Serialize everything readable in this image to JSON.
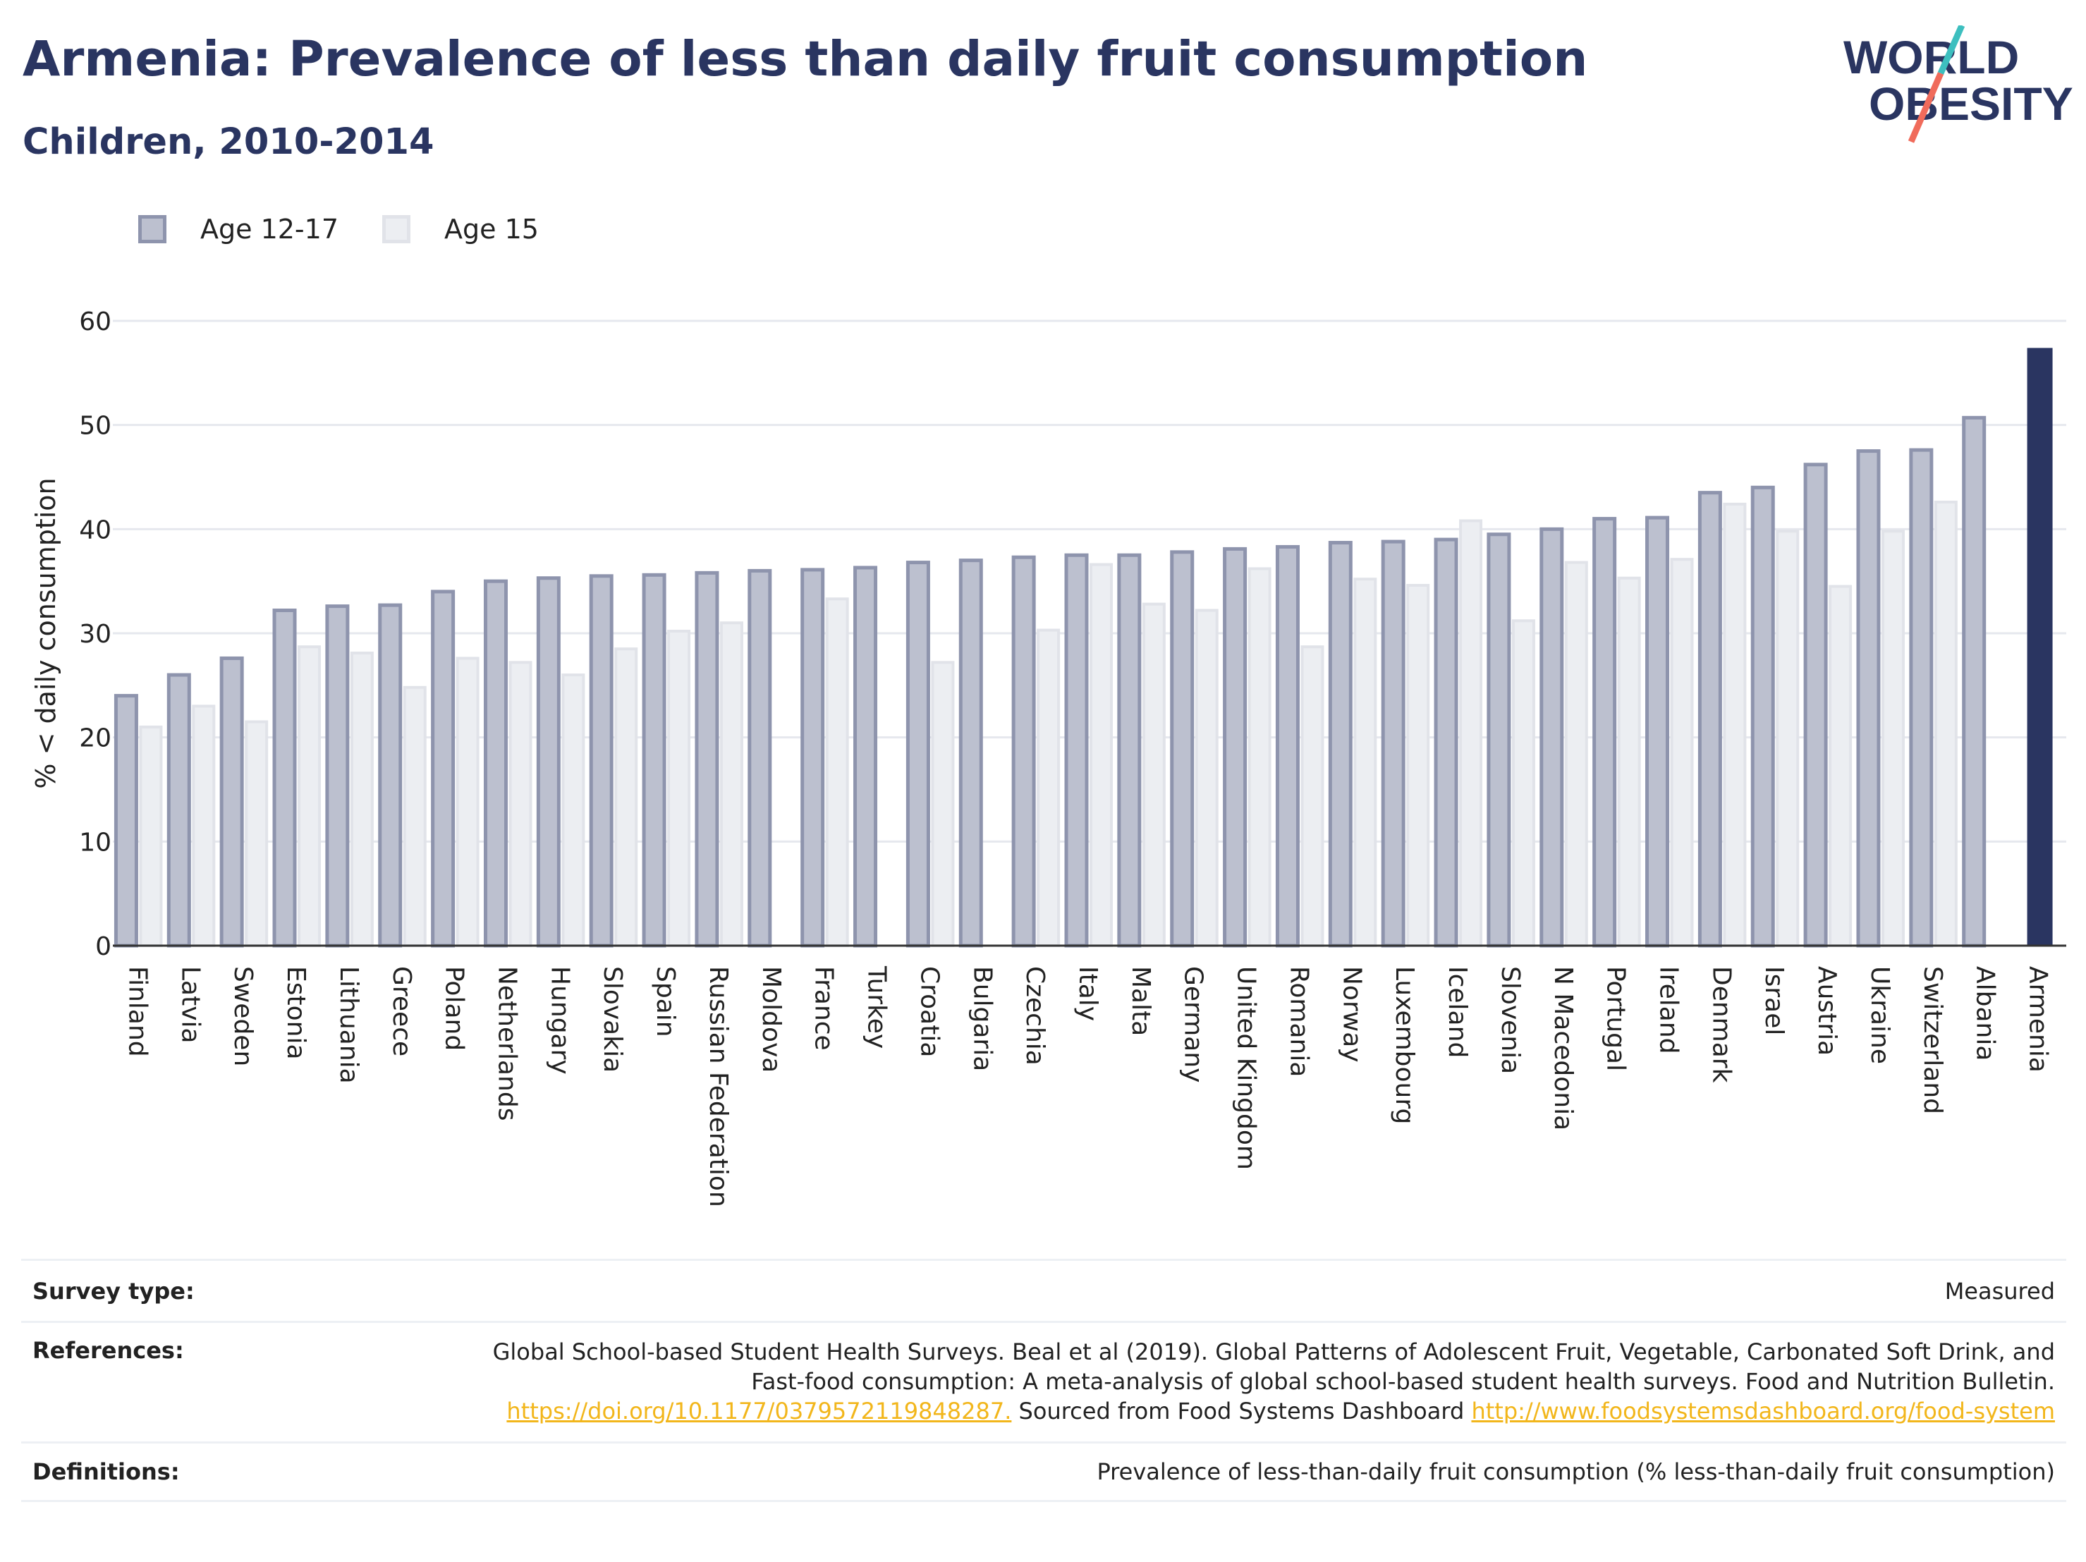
{
  "header": {
    "title": "Armenia: Prevalence of less than daily fruit consumption",
    "subtitle": "Children, 2010-2014",
    "logo_line1": "WORLD",
    "logo_line2": "OBESITY"
  },
  "legend": {
    "series_a": "Age 12-17",
    "series_b": "Age 15"
  },
  "colors": {
    "bar_a_fill": "#bcc0cf",
    "bar_a_border": "#8e94ad",
    "bar_b_fill": "#eceef2",
    "bar_b_border": "#e1e3e9",
    "highlight": "#2a3561",
    "gridline": "#e6e8ee",
    "link": "#f2b61b",
    "logo_teal": "#3dbfbf",
    "logo_coral": "#f06b5b"
  },
  "chart_data": {
    "type": "bar",
    "ylabel": "% < daily consumption",
    "ylim": [
      0,
      60
    ],
    "yticks": [
      0,
      10,
      20,
      30,
      40,
      50,
      60
    ],
    "grid": true,
    "legend_position": "top-left",
    "highlight_category": "Armenia",
    "categories": [
      "Finland",
      "Latvia",
      "Sweden",
      "Estonia",
      "Lithuania",
      "Greece",
      "Poland",
      "Netherlands",
      "Hungary",
      "Slovakia",
      "Spain",
      "Russian Federation",
      "Moldova",
      "France",
      "Turkey",
      "Croatia",
      "Bulgaria",
      "Czechia",
      "Italy",
      "Malta",
      "Germany",
      "United Kingdom",
      "Romania",
      "Norway",
      "Luxembourg",
      "Iceland",
      "Slovenia",
      "N Macedonia",
      "Portugal",
      "Ireland",
      "Denmark",
      "Israel",
      "Austria",
      "Ukraine",
      "Switzerland",
      "Albania",
      "Armenia"
    ],
    "series": [
      {
        "name": "Age 12-17",
        "values": [
          24.0,
          26.0,
          27.6,
          32.2,
          32.6,
          32.7,
          34.0,
          35.0,
          35.3,
          35.5,
          35.6,
          35.8,
          36.0,
          36.1,
          36.3,
          36.8,
          37.0,
          37.3,
          37.5,
          37.5,
          37.8,
          38.1,
          38.3,
          38.7,
          38.8,
          39.0,
          39.5,
          40.0,
          41.0,
          41.1,
          43.5,
          44.0,
          46.2,
          47.5,
          47.6,
          50.7,
          57.4
        ]
      },
      {
        "name": "Age 15",
        "values": [
          21.0,
          23.0,
          21.5,
          28.7,
          28.1,
          24.8,
          27.6,
          27.2,
          26.0,
          28.5,
          30.2,
          31.0,
          null,
          33.3,
          null,
          27.2,
          null,
          30.3,
          36.6,
          32.8,
          32.2,
          36.2,
          28.7,
          35.2,
          34.6,
          40.8,
          31.2,
          36.8,
          35.3,
          37.1,
          42.4,
          39.8,
          34.5,
          39.8,
          42.6,
          null,
          null
        ]
      }
    ]
  },
  "footer": {
    "survey_label": "Survey type:",
    "survey_value": "Measured",
    "references_label": "References:",
    "references_text": "Global School-based Student Health Surveys. Beal et al (2019). Global Patterns of Adolescent Fruit, Vegetable, Carbonated Soft Drink, and Fast-food consumption: A meta-analysis of global school-based student health surveys. Food and Nutrition Bulletin.",
    "references_link1": "https://doi.org/10.1177/0379572119848287.",
    "references_mid": "Sourced from Food Systems Dashboard",
    "references_link2": "http://www.foodsystemsdashboard.org/food-system",
    "definitions_label": "Definitions:",
    "definitions_value": "Prevalence of less-than-daily fruit consumption (% less-than-daily fruit consumption)"
  }
}
